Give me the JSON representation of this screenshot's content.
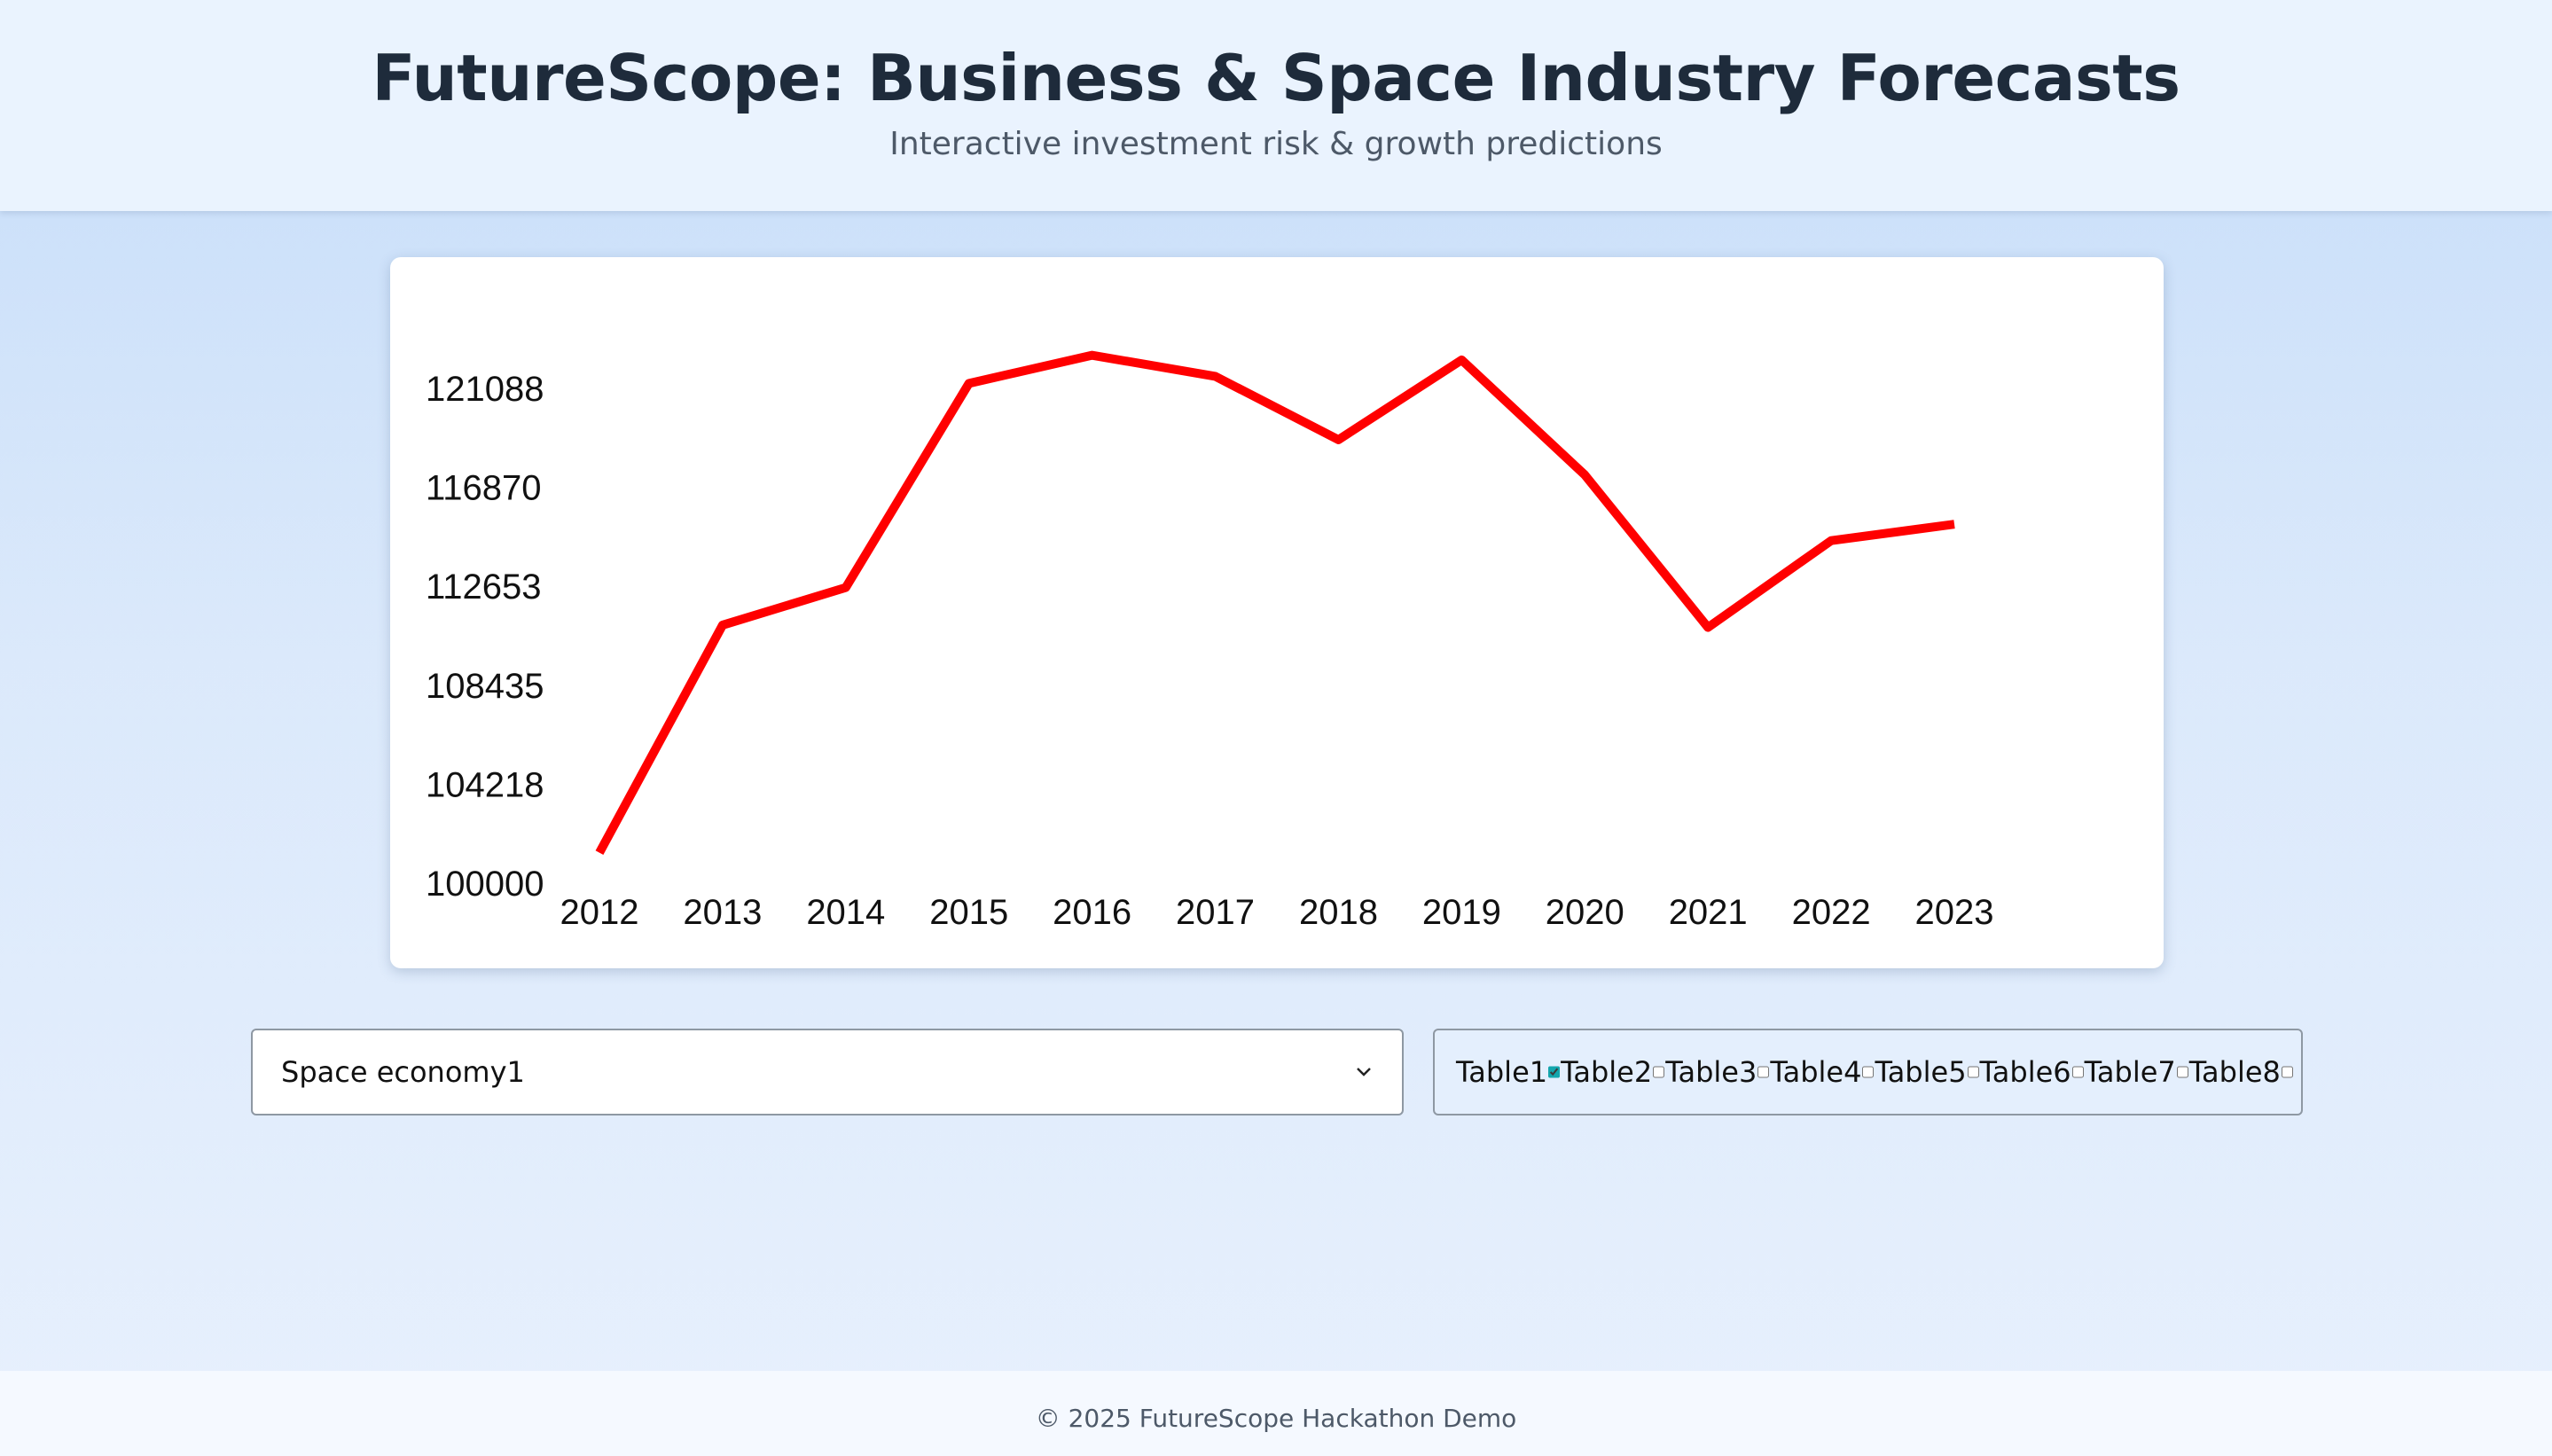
{
  "header": {
    "title": "FutureScope: Business & Space Industry Forecasts",
    "subtitle": "Interactive investment risk & growth predictions"
  },
  "chart_data": {
    "type": "line",
    "x": [
      "2012",
      "2013",
      "2014",
      "2015",
      "2016",
      "2017",
      "2018",
      "2019",
      "2020",
      "2021",
      "2022",
      "2023"
    ],
    "series": [
      {
        "values": [
          101300,
          111000,
          112600,
          121300,
          122500,
          121600,
          118900,
          122300,
          117400,
          110900,
          114600,
          115300
        ],
        "color": "#ff0000"
      }
    ],
    "yticks": [
      "100000",
      "104218",
      "108435",
      "112653",
      "116870",
      "121088"
    ],
    "ylim": [
      100000,
      121088
    ],
    "title": "",
    "xlabel": "",
    "ylabel": "",
    "grid": false
  },
  "controls": {
    "dataset_select": {
      "value": "Space economy1",
      "icon": "chevron-down-icon"
    },
    "tables": [
      {
        "label": "Table1",
        "checked": true
      },
      {
        "label": "Table2",
        "checked": false
      },
      {
        "label": "Table3",
        "checked": false
      },
      {
        "label": "Table4",
        "checked": false
      },
      {
        "label": "Table5",
        "checked": false
      },
      {
        "label": "Table6",
        "checked": false
      },
      {
        "label": "Table7",
        "checked": false
      },
      {
        "label": "Table8",
        "checked": false
      }
    ],
    "accent_color": "#14a6ad"
  },
  "footer": {
    "text": "© 2025 FutureScope Hackathon Demo"
  }
}
